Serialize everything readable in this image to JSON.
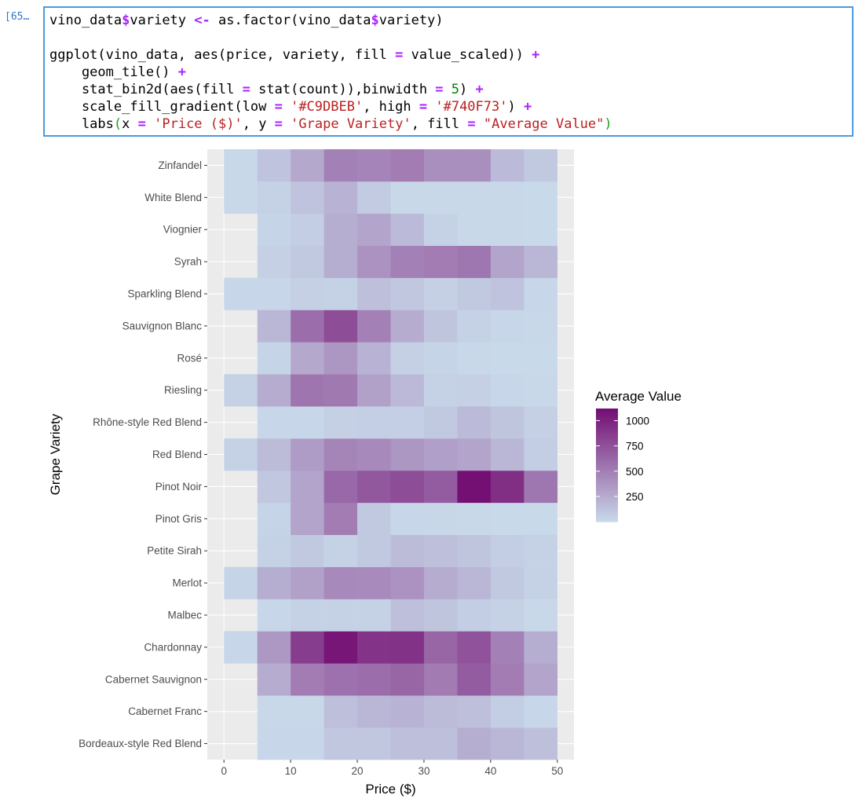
{
  "cell": {
    "prompt": "[65…",
    "code_lines": [
      [
        {
          "t": "vino_data"
        },
        {
          "t": "$",
          "c": "op"
        },
        {
          "t": "variety "
        },
        {
          "t": "<-",
          "c": "op"
        },
        {
          "t": " as.factor(vino_data"
        },
        {
          "t": "$",
          "c": "op"
        },
        {
          "t": "variety)"
        }
      ],
      [],
      [
        {
          "t": "ggplot(vino_data, aes(price, variety, fill "
        },
        {
          "t": "=",
          "c": "op"
        },
        {
          "t": " value_scaled)) "
        },
        {
          "t": "+",
          "c": "op"
        }
      ],
      [
        {
          "t": "    geom_tile() "
        },
        {
          "t": "+",
          "c": "op"
        }
      ],
      [
        {
          "t": "    stat_bin2d(aes(fill "
        },
        {
          "t": "=",
          "c": "op"
        },
        {
          "t": " stat(count)),binwidth "
        },
        {
          "t": "=",
          "c": "op"
        },
        {
          "t": " "
        },
        {
          "t": "5",
          "c": "num"
        },
        {
          "t": ") "
        },
        {
          "t": "+",
          "c": "op"
        }
      ],
      [
        {
          "t": "    scale_fill_gradient(low "
        },
        {
          "t": "=",
          "c": "op"
        },
        {
          "t": " "
        },
        {
          "t": "'#C9DBEB'",
          "c": "str"
        },
        {
          "t": ", high "
        },
        {
          "t": "=",
          "c": "op"
        },
        {
          "t": " "
        },
        {
          "t": "'#740F73'",
          "c": "str"
        },
        {
          "t": ") "
        },
        {
          "t": "+",
          "c": "op"
        }
      ],
      [
        {
          "t": "    labs"
        },
        {
          "t": "(",
          "c": "paren"
        },
        {
          "t": "x "
        },
        {
          "t": "=",
          "c": "op"
        },
        {
          "t": " "
        },
        {
          "t": "'Price ($)'",
          "c": "str"
        },
        {
          "t": ", y "
        },
        {
          "t": "=",
          "c": "op"
        },
        {
          "t": " "
        },
        {
          "t": "'Grape Variety'",
          "c": "str"
        },
        {
          "t": ", fill "
        },
        {
          "t": "=",
          "c": "op"
        },
        {
          "t": " "
        },
        {
          "t": "\"Average Value\"",
          "c": "str"
        },
        {
          "t": ")",
          "c": "paren"
        }
      ]
    ]
  },
  "chart_data": {
    "type": "heatmap",
    "xlabel": "Price ($)",
    "ylabel": "Grape Variety",
    "xlim": [
      -2.5,
      52.5
    ],
    "x_ticks": [
      0,
      10,
      20,
      30,
      40,
      50
    ],
    "x_bins": [
      0,
      5,
      10,
      15,
      20,
      25,
      30,
      35,
      40,
      45
    ],
    "bin_width": 5,
    "low_color": "#C9DBEB",
    "high_color": "#740F73",
    "panel_color": "#EBEBEB",
    "legend": {
      "title": "Average Value",
      "breaks": [
        250,
        500,
        750,
        1000
      ],
      "min": 1,
      "max": 1120,
      "position": "right"
    },
    "grid": true,
    "rows": [
      {
        "variety": "Bordeaux-style Red Blend",
        "counts": [
          null,
          30,
          30,
          110,
          110,
          150,
          150,
          250,
          200,
          150
        ]
      },
      {
        "variety": "Cabernet Franc",
        "counts": [
          null,
          15,
          20,
          150,
          200,
          220,
          170,
          150,
          80,
          30
        ]
      },
      {
        "variety": "Cabernet Sauvignon",
        "counts": [
          null,
          260,
          520,
          580,
          600,
          650,
          530,
          700,
          520,
          300
        ]
      },
      {
        "variety": "Chardonnay",
        "counts": [
          30,
          370,
          870,
          1080,
          920,
          930,
          650,
          750,
          500,
          250
        ]
      },
      {
        "variety": "Malbec",
        "counts": [
          null,
          30,
          50,
          50,
          50,
          150,
          120,
          80,
          50,
          20
        ]
      },
      {
        "variety": "Merlot",
        "counts": [
          40,
          250,
          320,
          450,
          440,
          400,
          260,
          200,
          100,
          50
        ]
      },
      {
        "variety": "Petite Sirah",
        "counts": [
          null,
          50,
          100,
          50,
          100,
          170,
          150,
          120,
          80,
          50
        ]
      },
      {
        "variety": "Pinot Gris",
        "counts": [
          null,
          40,
          300,
          520,
          100,
          30,
          25,
          20,
          10,
          10
        ]
      },
      {
        "variety": "Pinot Noir",
        "counts": [
          null,
          110,
          300,
          630,
          720,
          780,
          700,
          1120,
          950,
          550
        ]
      },
      {
        "variety": "Red Blend",
        "counts": [
          50,
          170,
          350,
          480,
          450,
          380,
          330,
          300,
          200,
          80
        ]
      },
      {
        "variety": "Rhône-style Red Blend",
        "counts": [
          null,
          30,
          30,
          60,
          70,
          70,
          100,
          180,
          120,
          60
        ]
      },
      {
        "variety": "Riesling",
        "counts": [
          50,
          260,
          560,
          540,
          320,
          190,
          50,
          60,
          30,
          20
        ]
      },
      {
        "variety": "Rosé",
        "counts": [
          null,
          40,
          280,
          380,
          220,
          60,
          40,
          20,
          10,
          10
        ]
      },
      {
        "variety": "Sauvignon Blanc",
        "counts": [
          null,
          200,
          600,
          780,
          500,
          260,
          120,
          50,
          30,
          20
        ]
      },
      {
        "variety": "Sparkling Blend",
        "counts": [
          30,
          30,
          60,
          50,
          150,
          110,
          60,
          100,
          130,
          30
        ]
      },
      {
        "variety": "Syrah",
        "counts": [
          null,
          60,
          100,
          250,
          400,
          500,
          520,
          550,
          300,
          200
        ]
      },
      {
        "variety": "Viognier",
        "counts": [
          null,
          40,
          80,
          250,
          300,
          180,
          50,
          20,
          20,
          10
        ]
      },
      {
        "variety": "White Blend",
        "counts": [
          20,
          50,
          130,
          220,
          90,
          20,
          20,
          20,
          20,
          10
        ]
      },
      {
        "variety": "Zinfandel",
        "counts": [
          20,
          130,
          280,
          500,
          470,
          520,
          420,
          420,
          180,
          100
        ]
      }
    ]
  }
}
